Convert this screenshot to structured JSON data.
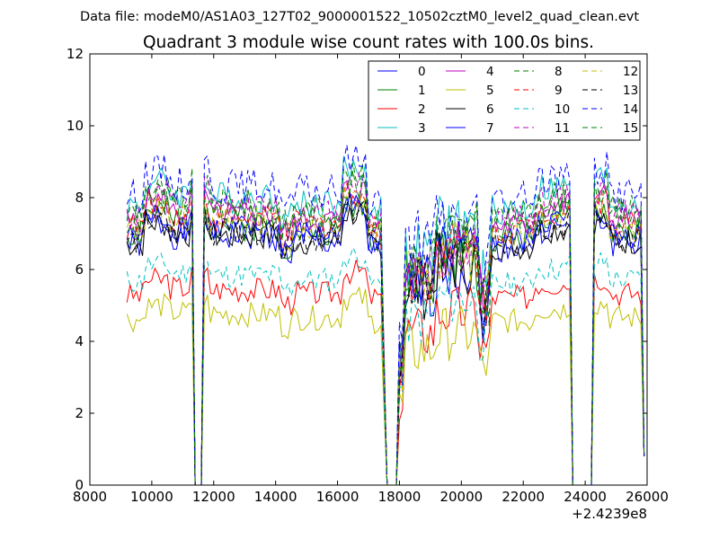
{
  "figure": {
    "suptitle": "Data file: modeM0/AS1A03_127T02_9000001522_10502cztM0_level2_quad_clean.evt"
  },
  "chart_data": {
    "type": "line",
    "title": "Quadrant 3 module wise count rates with 100.0s bins.",
    "xlabel": "",
    "ylabel": "",
    "x_offset_label": "+2.4239e8",
    "xlim": [
      8000,
      26000
    ],
    "ylim": [
      0,
      12
    ],
    "xticks": [
      8000,
      10000,
      12000,
      14000,
      16000,
      18000,
      20000,
      22000,
      24000,
      26000
    ],
    "yticks": [
      0,
      2,
      4,
      6,
      8,
      10,
      12
    ],
    "grid": false,
    "legend_position": "top-right",
    "legend_columns": 4,
    "segments": [
      [
        9200,
        11300
      ],
      [
        11700,
        17500
      ],
      [
        18000,
        23500
      ],
      [
        24300,
        25900
      ]
    ],
    "zero_points": [
      11400,
      11600,
      17600,
      17700,
      17800,
      17900,
      23600,
      23700,
      23800,
      23900,
      24000,
      24100,
      24200
    ],
    "series": [
      {
        "name": "0",
        "color": "#0000ff",
        "dash": "solid",
        "level": 7.0,
        "amp": 0.45,
        "seed": 1
      },
      {
        "name": "1",
        "color": "#008000",
        "dash": "solid",
        "level": 7.3,
        "amp": 0.45,
        "seed": 2
      },
      {
        "name": "2",
        "color": "#ff0000",
        "dash": "solid",
        "level": 5.5,
        "amp": 0.35,
        "seed": 3
      },
      {
        "name": "3",
        "color": "#00bfbf",
        "dash": "solid",
        "level": 8.1,
        "amp": 0.45,
        "seed": 4
      },
      {
        "name": "4",
        "color": "#bf00bf",
        "dash": "solid",
        "level": 7.6,
        "amp": 0.4,
        "seed": 5
      },
      {
        "name": "5",
        "color": "#bfbf00",
        "dash": "solid",
        "level": 4.8,
        "amp": 0.35,
        "seed": 6
      },
      {
        "name": "6",
        "color": "#000000",
        "dash": "solid",
        "level": 7.0,
        "amp": 0.4,
        "seed": 7
      },
      {
        "name": "7",
        "color": "#0000ff",
        "dash": "solid",
        "level": 7.2,
        "amp": 0.4,
        "seed": 8
      },
      {
        "name": "8",
        "color": "#008000",
        "dash": "dashed",
        "level": 7.9,
        "amp": 0.45,
        "seed": 9
      },
      {
        "name": "9",
        "color": "#ff0000",
        "dash": "dashed",
        "level": 7.5,
        "amp": 0.4,
        "seed": 10
      },
      {
        "name": "10",
        "color": "#00bfbf",
        "dash": "dashed",
        "level": 5.9,
        "amp": 0.35,
        "seed": 11
      },
      {
        "name": "11",
        "color": "#bf00bf",
        "dash": "dashed",
        "level": 7.8,
        "amp": 0.4,
        "seed": 12
      },
      {
        "name": "12",
        "color": "#bfbf00",
        "dash": "dashed",
        "level": 7.4,
        "amp": 0.4,
        "seed": 13
      },
      {
        "name": "13",
        "color": "#000000",
        "dash": "dashed",
        "level": 7.1,
        "amp": 0.4,
        "seed": 14
      },
      {
        "name": "14",
        "color": "#0000ff",
        "dash": "dashed",
        "level": 8.4,
        "amp": 0.5,
        "seed": 15
      },
      {
        "name": "15",
        "color": "#008000",
        "dash": "dashed",
        "level": 7.7,
        "amp": 0.45,
        "seed": 16
      }
    ]
  }
}
